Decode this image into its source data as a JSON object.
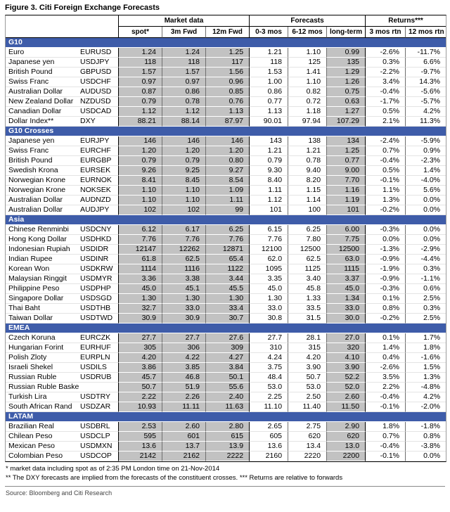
{
  "figure_title": "Figure 3. Citi Foreign Exchange Forecasts",
  "colors": {
    "section_header_bg": "#3e5ca9",
    "section_header_text": "#ffffff",
    "shaded_column_bg": "#c2c2c2"
  },
  "table": {
    "groups": [
      "Market data",
      "Forecasts",
      "Returns***"
    ],
    "columns": [
      "spot*",
      "3m Fwd",
      "12m Fwd",
      "0-3 mos",
      "6-12 mos",
      "long-term",
      "3 mos rtn",
      "12 mos rtn"
    ],
    "sections": [
      {
        "name": "G10",
        "rows": [
          {
            "currency": "Euro",
            "ticker": "EURUSD",
            "values": [
              "1.24",
              "1.24",
              "1.25",
              "1.21",
              "1.10",
              "0.99",
              "-2.6%",
              "-11.7%"
            ]
          },
          {
            "currency": "Japanese yen",
            "ticker": "USDJPY",
            "values": [
              "118",
              "118",
              "117",
              "118",
              "125",
              "135",
              "0.3%",
              "6.6%"
            ]
          },
          {
            "currency": "British Pound",
            "ticker": "GBPUSD",
            "values": [
              "1.57",
              "1.57",
              "1.56",
              "1.53",
              "1.41",
              "1.29",
              "-2.2%",
              "-9.7%"
            ]
          },
          {
            "currency": "Swiss Franc",
            "ticker": "USDCHF",
            "values": [
              "0.97",
              "0.97",
              "0.96",
              "1.00",
              "1.10",
              "1.26",
              "3.4%",
              "14.3%"
            ]
          },
          {
            "currency": "Australian Dollar",
            "ticker": "AUDUSD",
            "values": [
              "0.87",
              "0.86",
              "0.85",
              "0.86",
              "0.82",
              "0.75",
              "-0.4%",
              "-5.6%"
            ]
          },
          {
            "currency": "New Zealand Dollar",
            "ticker": "NZDUSD",
            "values": [
              "0.79",
              "0.78",
              "0.76",
              "0.77",
              "0.72",
              "0.63",
              "-1.7%",
              "-5.7%"
            ]
          },
          {
            "currency": "Canadian Dollar",
            "ticker": "USDCAD",
            "values": [
              "1.12",
              "1.12",
              "1.13",
              "1.13",
              "1.18",
              "1.27",
              "0.5%",
              "4.2%"
            ]
          },
          {
            "currency": "Dollar Index**",
            "ticker": "DXY",
            "values": [
              "88.21",
              "88.14",
              "87.97",
              "90.01",
              "97.94",
              "107.29",
              "2.1%",
              "11.3%"
            ]
          }
        ]
      },
      {
        "name": "G10 Crosses",
        "rows": [
          {
            "currency": "Japanese yen",
            "ticker": "EURJPY",
            "values": [
              "146",
              "146",
              "146",
              "143",
              "138",
              "134",
              "-2.4%",
              "-5.9%"
            ]
          },
          {
            "currency": "Swiss Franc",
            "ticker": "EURCHF",
            "values": [
              "1.20",
              "1.20",
              "1.20",
              "1.21",
              "1.21",
              "1.25",
              "0.7%",
              "0.9%"
            ]
          },
          {
            "currency": "British Pound",
            "ticker": "EURGBP",
            "values": [
              "0.79",
              "0.79",
              "0.80",
              "0.79",
              "0.78",
              "0.77",
              "-0.4%",
              "-2.3%"
            ]
          },
          {
            "currency": "Swedish Krona",
            "ticker": "EURSEK",
            "values": [
              "9.26",
              "9.25",
              "9.27",
              "9.30",
              "9.40",
              "9.00",
              "0.5%",
              "1.4%"
            ]
          },
          {
            "currency": "Norwegian Krone",
            "ticker": "EURNOK",
            "values": [
              "8.41",
              "8.45",
              "8.54",
              "8.40",
              "8.20",
              "7.70",
              "-0.1%",
              "-4.0%"
            ]
          },
          {
            "currency": "Norwegian Krone",
            "ticker": "NOKSEK",
            "values": [
              "1.10",
              "1.10",
              "1.09",
              "1.11",
              "1.15",
              "1.16",
              "1.1%",
              "5.6%"
            ]
          },
          {
            "currency": "Australian Dollar",
            "ticker": "AUDNZD",
            "values": [
              "1.10",
              "1.10",
              "1.11",
              "1.12",
              "1.14",
              "1.19",
              "1.3%",
              "0.0%"
            ]
          },
          {
            "currency": "Australian Dollar",
            "ticker": "AUDJPY",
            "values": [
              "102",
              "102",
              "99",
              "101",
              "100",
              "101",
              "-0.2%",
              "0.0%"
            ]
          }
        ]
      },
      {
        "name": "Asia",
        "rows": [
          {
            "currency": "Chinese Renminbi",
            "ticker": "USDCNY",
            "values": [
              "6.12",
              "6.17",
              "6.25",
              "6.15",
              "6.25",
              "6.00",
              "-0.3%",
              "0.0%"
            ]
          },
          {
            "currency": "Hong Kong Dollar",
            "ticker": "USDHKD",
            "values": [
              "7.76",
              "7.76",
              "7.76",
              "7.76",
              "7.80",
              "7.75",
              "0.0%",
              "0.0%"
            ]
          },
          {
            "currency": "Indonesian Rupiah",
            "ticker": "USDIDR",
            "values": [
              "12147",
              "12262",
              "12871",
              "12100",
              "12500",
              "12500",
              "-1.3%",
              "-2.9%"
            ]
          },
          {
            "currency": "Indian Rupee",
            "ticker": "USDINR",
            "values": [
              "61.8",
              "62.5",
              "65.4",
              "62.0",
              "62.5",
              "63.0",
              "-0.9%",
              "-4.4%"
            ]
          },
          {
            "currency": "Korean Won",
            "ticker": "USDKRW",
            "values": [
              "1114",
              "1116",
              "1122",
              "1095",
              "1125",
              "1115",
              "-1.9%",
              "0.3%"
            ]
          },
          {
            "currency": "Malaysian Ringgit",
            "ticker": "USDMYR",
            "values": [
              "3.36",
              "3.38",
              "3.44",
              "3.35",
              "3.40",
              "3.37",
              "-0.9%",
              "-1.1%"
            ]
          },
          {
            "currency": "Philippine Peso",
            "ticker": "USDPHP",
            "values": [
              "45.0",
              "45.1",
              "45.5",
              "45.0",
              "45.8",
              "45.0",
              "-0.3%",
              "0.6%"
            ]
          },
          {
            "currency": "Singapore Dollar",
            "ticker": "USDSGD",
            "values": [
              "1.30",
              "1.30",
              "1.30",
              "1.30",
              "1.33",
              "1.34",
              "0.1%",
              "2.5%"
            ]
          },
          {
            "currency": "Thai Baht",
            "ticker": "USDTHB",
            "values": [
              "32.7",
              "33.0",
              "33.4",
              "33.0",
              "33.5",
              "33.0",
              "0.8%",
              "0.3%"
            ]
          },
          {
            "currency": "Taiwan Dollar",
            "ticker": "USDTWD",
            "values": [
              "30.9",
              "30.9",
              "30.7",
              "30.8",
              "31.5",
              "30.0",
              "-0.2%",
              "2.5%"
            ]
          }
        ]
      },
      {
        "name": "EMEA",
        "rows": [
          {
            "currency": "Czech Koruna",
            "ticker": "EURCZK",
            "values": [
              "27.7",
              "27.7",
              "27.6",
              "27.7",
              "28.1",
              "27.0",
              "0.1%",
              "1.7%"
            ]
          },
          {
            "currency": "Hungarian Forint",
            "ticker": "EURHUF",
            "values": [
              "305",
              "306",
              "309",
              "310",
              "315",
              "320",
              "1.4%",
              "1.8%"
            ]
          },
          {
            "currency": "Polish Zloty",
            "ticker": "EURPLN",
            "values": [
              "4.20",
              "4.22",
              "4.27",
              "4.24",
              "4.20",
              "4.10",
              "0.4%",
              "-1.6%"
            ]
          },
          {
            "currency": "Israeli Shekel",
            "ticker": "USDILS",
            "values": [
              "3.86",
              "3.85",
              "3.84",
              "3.75",
              "3.90",
              "3.90",
              "-2.6%",
              "1.5%"
            ]
          },
          {
            "currency": "Russian Ruble",
            "ticker": "USDRUB",
            "values": [
              "45.7",
              "46.8",
              "50.1",
              "48.4",
              "50.7",
              "52.2",
              "3.5%",
              "1.3%"
            ]
          },
          {
            "currency": "Russian Ruble Basket",
            "ticker": "",
            "values": [
              "50.7",
              "51.9",
              "55.6",
              "53.0",
              "53.0",
              "52.0",
              "2.2%",
              "-4.8%"
            ]
          },
          {
            "currency": "Turkish Lira",
            "ticker": "USDTRY",
            "values": [
              "2.22",
              "2.26",
              "2.40",
              "2.25",
              "2.50",
              "2.60",
              "-0.4%",
              "4.2%"
            ]
          },
          {
            "currency": "South African Rand",
            "ticker": "USDZAR",
            "values": [
              "10.93",
              "11.11",
              "11.63",
              "11.10",
              "11.40",
              "11.50",
              "-0.1%",
              "-2.0%"
            ]
          }
        ]
      },
      {
        "name": "LATAM",
        "rows": [
          {
            "currency": "Brazilian Real",
            "ticker": "USDBRL",
            "values": [
              "2.53",
              "2.60",
              "2.80",
              "2.65",
              "2.75",
              "2.90",
              "1.8%",
              "-1.8%"
            ]
          },
          {
            "currency": "Chilean Peso",
            "ticker": "USDCLP",
            "values": [
              "595",
              "601",
              "615",
              "605",
              "620",
              "620",
              "0.7%",
              "0.8%"
            ]
          },
          {
            "currency": "Mexican Peso",
            "ticker": "USDMXN",
            "values": [
              "13.6",
              "13.7",
              "13.9",
              "13.6",
              "13.4",
              "13.0",
              "-0.4%",
              "-3.8%"
            ]
          },
          {
            "currency": "Colombian Peso",
            "ticker": "USDCOP",
            "values": [
              "2142",
              "2162",
              "2222",
              "2160",
              "2220",
              "2200",
              "-0.1%",
              "0.0%"
            ]
          }
        ]
      }
    ]
  },
  "footnotes": [
    "* market data including spot as of 2:35 PM London time on 21-Nov-2014",
    "** The DXY forecasts are implied from the forecasts of the constituent crosses. *** Returns are relative to forwards"
  ],
  "source": "Source: Bloomberg and Citi Research"
}
